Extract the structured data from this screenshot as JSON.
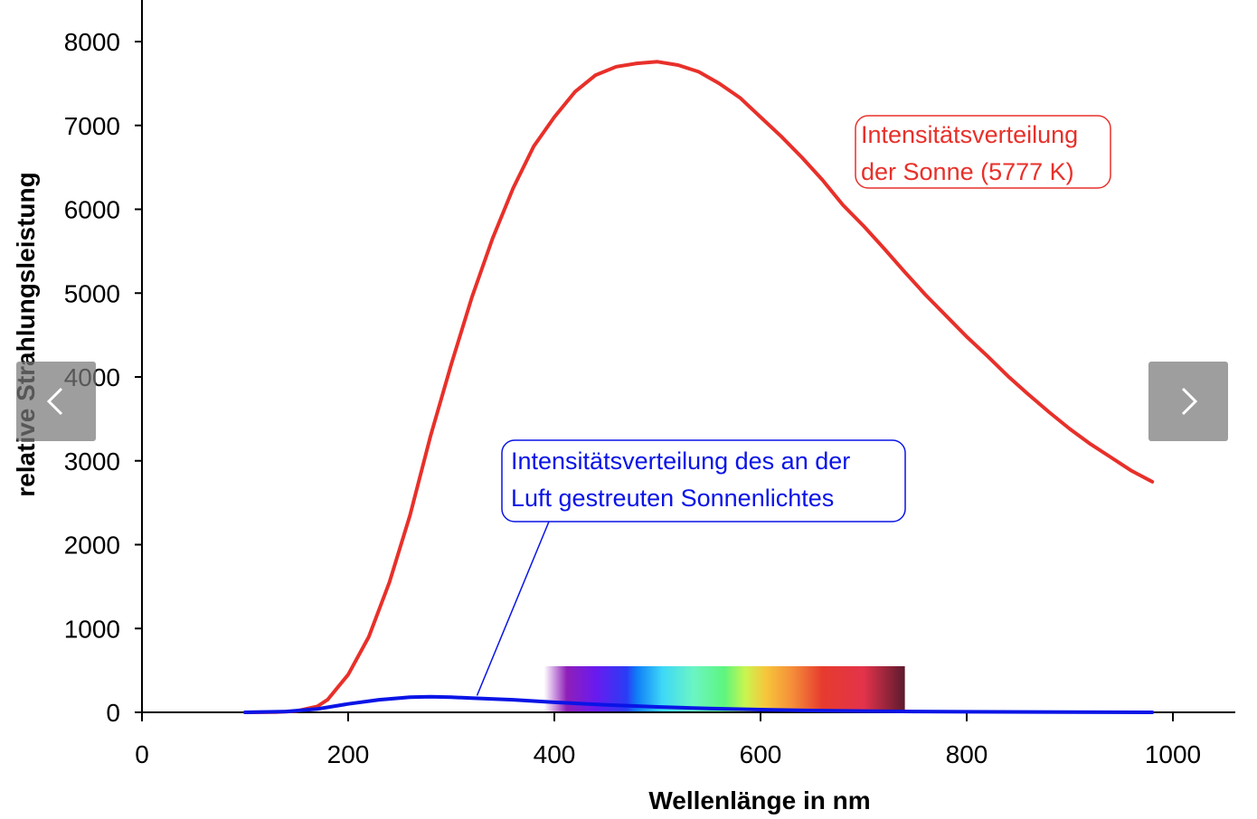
{
  "chart_data": {
    "type": "line",
    "xlabel": "Wellenlänge in nm",
    "ylabel": "relative Strahlungsleistung",
    "xlim": [
      0,
      1060
    ],
    "ylim": [
      0,
      8500
    ],
    "x_ticks": [
      0,
      200,
      400,
      600,
      800,
      1000
    ],
    "y_ticks": [
      0,
      1000,
      2000,
      3000,
      4000,
      5000,
      6000,
      7000,
      8000
    ],
    "grid": false,
    "legend": "none",
    "series": [
      {
        "key": "sun",
        "color": "#e8302a",
        "x": [
          100,
          130,
          150,
          170,
          180,
          200,
          220,
          240,
          260,
          280,
          300,
          320,
          340,
          360,
          380,
          400,
          420,
          440,
          460,
          480,
          500,
          520,
          540,
          560,
          580,
          600,
          620,
          640,
          660,
          680,
          700,
          720,
          740,
          760,
          780,
          800,
          820,
          840,
          860,
          880,
          900,
          920,
          940,
          960,
          980
        ],
        "y": [
          0,
          2,
          15,
          70,
          150,
          450,
          900,
          1550,
          2350,
          3300,
          4150,
          4950,
          5650,
          6250,
          6750,
          7100,
          7400,
          7600,
          7700,
          7740,
          7760,
          7720,
          7640,
          7500,
          7330,
          7100,
          6870,
          6620,
          6350,
          6050,
          5800,
          5530,
          5250,
          4980,
          4730,
          4480,
          4250,
          4010,
          3790,
          3580,
          3380,
          3200,
          3040,
          2880,
          2750
        ]
      },
      {
        "key": "scattered",
        "color": "#0a14e6",
        "x": [
          100,
          140,
          170,
          200,
          230,
          260,
          280,
          300,
          320,
          360,
          400,
          450,
          500,
          550,
          600,
          650,
          700,
          750,
          800,
          900,
          980
        ],
        "y": [
          0,
          10,
          40,
          100,
          150,
          180,
          185,
          180,
          170,
          150,
          120,
          90,
          65,
          45,
          32,
          22,
          15,
          10,
          6,
          2,
          0
        ]
      }
    ],
    "annotations": [
      {
        "key": "sun",
        "color": "#e8302a",
        "lines": [
          "Intensitätsverteilung",
          "der Sonne (5777 K)"
        ]
      },
      {
        "key": "scattered",
        "color": "#0a14e6",
        "lines": [
          "Intensitätsverteilung des an der",
          "Luft gestreuten Sonnenlichtes"
        ],
        "pointer_to": [
          325,
          200
        ]
      }
    ],
    "spectrum_band": {
      "x_range": [
        390,
        740
      ],
      "y_top": 550,
      "stops": [
        {
          "x": 390,
          "color": "#ffffff"
        },
        {
          "x": 412,
          "color": "#8f1fb8"
        },
        {
          "x": 440,
          "color": "#6a1aef"
        },
        {
          "x": 470,
          "color": "#2a3cf5"
        },
        {
          "x": 480,
          "color": "#0f7ef7"
        },
        {
          "x": 505,
          "color": "#3ed8f8"
        },
        {
          "x": 535,
          "color": "#6bf5c4"
        },
        {
          "x": 565,
          "color": "#5ef57e"
        },
        {
          "x": 585,
          "color": "#c8f550"
        },
        {
          "x": 605,
          "color": "#f7c63b"
        },
        {
          "x": 630,
          "color": "#f5903a"
        },
        {
          "x": 660,
          "color": "#e63b2e"
        },
        {
          "x": 700,
          "color": "#e3334b"
        },
        {
          "x": 740,
          "color": "#5c1a2e"
        }
      ]
    }
  },
  "navigation": {
    "prev_icon": "chevron-left-icon",
    "next_icon": "chevron-right-icon"
  }
}
